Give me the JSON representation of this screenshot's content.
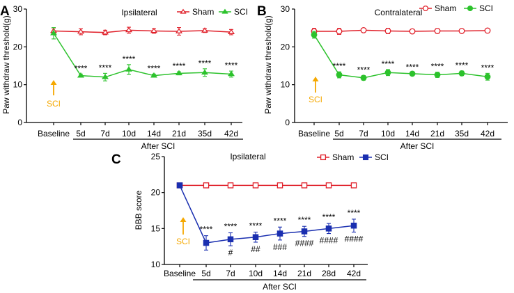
{
  "chart_data": [
    {
      "panel_label": "A",
      "type": "line",
      "title": "Ipsilateral",
      "ylabel": "Paw withdraw threshold(g)",
      "xlabel": "After SCI",
      "categories": [
        "Baseline",
        "5d",
        "7d",
        "10d",
        "14d",
        "21d",
        "35d",
        "42d"
      ],
      "ylim": [
        0,
        30
      ],
      "yticks": [
        "0",
        "10",
        "20",
        "30"
      ],
      "grid": false,
      "legend_position": "top",
      "series": [
        {
          "name": "Sham",
          "marker": "triangle-open",
          "color": "#e0202a",
          "values": [
            24.2,
            24.0,
            23.8,
            24.4,
            24.2,
            24.1,
            24.3,
            23.9
          ],
          "errors": [
            0.8,
            0.8,
            0.6,
            0.8,
            0.6,
            1.0,
            0.5,
            0.7
          ]
        },
        {
          "name": "SCI",
          "marker": "triangle-filled",
          "color": "#2cc22c",
          "values": [
            23.6,
            12.4,
            12.0,
            14.0,
            12.4,
            13.0,
            13.2,
            12.8
          ],
          "errors": [
            1.5,
            0.4,
            1.0,
            1.3,
            0.4,
            0.4,
            1.0,
            0.8
          ]
        }
      ],
      "sig_above": [
        "",
        "****",
        "****",
        "****",
        "****",
        "****",
        "****",
        "****"
      ],
      "sig_below": [
        "",
        "",
        "",
        "",
        "",
        "",
        "",
        ""
      ],
      "annotation": {
        "text": "SCI",
        "color": "#f5a800"
      }
    },
    {
      "panel_label": "B",
      "type": "line",
      "title": "Contralateral",
      "ylabel": "Paw withdraw threshold(g)",
      "xlabel": "After SCI",
      "categories": [
        "Baseline",
        "5d",
        "7d",
        "10d",
        "14d",
        "21d",
        "35d",
        "42d"
      ],
      "ylim": [
        0,
        30
      ],
      "yticks": [
        "0",
        "10",
        "20",
        "30"
      ],
      "grid": false,
      "legend_position": "top",
      "series": [
        {
          "name": "Sham",
          "marker": "circle-open",
          "color": "#e0202a",
          "values": [
            24.1,
            24.1,
            24.4,
            24.2,
            24.1,
            24.2,
            24.2,
            24.3
          ],
          "errors": [
            0.8,
            0.8,
            0.3,
            0.7,
            0.4,
            0.6,
            0.3,
            0.3
          ]
        },
        {
          "name": "SCI",
          "marker": "circle-filled",
          "color": "#2cc22c",
          "values": [
            23.2,
            12.6,
            11.8,
            13.2,
            12.9,
            12.6,
            13.0,
            12.1
          ],
          "errors": [
            0.9,
            0.8,
            0.6,
            0.8,
            0.3,
            0.7,
            0.6,
            0.9
          ]
        }
      ],
      "sig_above": [
        "",
        "****",
        "****",
        "****",
        "****",
        "****",
        "****",
        "****"
      ],
      "sig_below": [
        "",
        "",
        "",
        "",
        "",
        "",
        "",
        ""
      ],
      "annotation": {
        "text": "SCI",
        "color": "#f5a800"
      }
    },
    {
      "panel_label": "C",
      "type": "line",
      "title": "Ipsilateral",
      "ylabel": "BBB score",
      "xlabel": "After SCI",
      "categories": [
        "Baseline",
        "5d",
        "7d",
        "10d",
        "14d",
        "21d",
        "28d",
        "42d"
      ],
      "ylim": [
        10,
        25
      ],
      "yticks": [
        "10",
        "15",
        "20",
        "25"
      ],
      "grid": false,
      "legend_position": "top",
      "series": [
        {
          "name": "Sham",
          "marker": "square-open",
          "color": "#e0202a",
          "values": [
            21,
            21,
            21,
            21,
            21,
            21,
            21,
            21
          ],
          "errors": [
            0,
            0,
            0,
            0,
            0,
            0,
            0,
            0
          ]
        },
        {
          "name": "SCI",
          "marker": "square-filled",
          "color": "#1a2fb0",
          "values": [
            21,
            13.0,
            13.5,
            13.8,
            14.3,
            14.6,
            15.0,
            15.4
          ],
          "errors": [
            0,
            1.0,
            0.9,
            0.7,
            0.9,
            0.7,
            0.7,
            0.9
          ]
        }
      ],
      "sig_above": [
        "",
        "****",
        "****",
        "****",
        "****",
        "****",
        "****",
        "****"
      ],
      "sig_below": [
        "",
        "",
        "#",
        "##",
        "###",
        "####",
        "####",
        "####"
      ],
      "annotation": {
        "text": "SCI",
        "color": "#f5a800"
      }
    }
  ]
}
